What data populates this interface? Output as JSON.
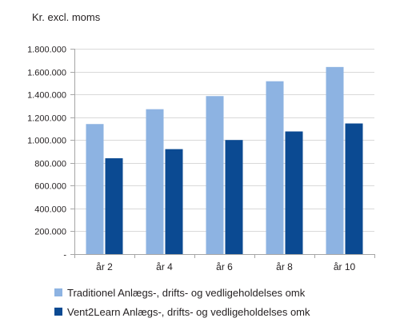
{
  "chart_data": {
    "type": "bar",
    "title": "",
    "ylabel": "Kr. excl. moms",
    "xlabel": "",
    "categories": [
      "år 2",
      "år 4",
      "år 6",
      "år 8",
      "år 10"
    ],
    "series": [
      {
        "name": "Traditionel Anlægs-, drifts- og vedligeholdelses omk",
        "color": "#8db3e2",
        "values": [
          1140000,
          1270000,
          1385000,
          1515000,
          1640000
        ]
      },
      {
        "name": "Vent2Learn Anlægs-, drifts- og vedligeholdelses omk",
        "color": "#0b4a92",
        "values": [
          840000,
          920000,
          1000000,
          1075000,
          1145000
        ]
      }
    ],
    "ylim": [
      0,
      1800000
    ],
    "yticks": [
      0,
      200000,
      400000,
      600000,
      800000,
      1000000,
      1200000,
      1400000,
      1600000,
      1800000
    ],
    "ytick_labels": [
      "-",
      "200.000",
      "400.000",
      "600.000",
      "800.000",
      "1.000.000",
      "1.200.000",
      "1.400.000",
      "1.600.000",
      "1.800.000"
    ],
    "grid": true,
    "legend_position": "bottom"
  }
}
